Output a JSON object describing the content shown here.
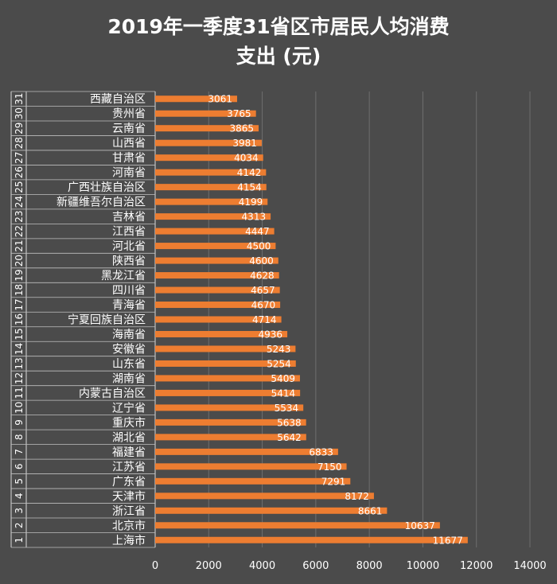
{
  "chart_data": {
    "type": "bar",
    "orientation": "horizontal",
    "title_line1": "2019年一季度31省区市居民人均消费",
    "title_line2": "支出 (元)",
    "colors": {
      "bar": "#ed7d31",
      "background": "#4b4b4b",
      "grid": "#6e6e6e",
      "text": "#ffffff"
    },
    "grid": true,
    "xlim": [
      0,
      14000
    ],
    "xticks": [
      "0",
      "2000",
      "4000",
      "6000",
      "8000",
      "10000",
      "12000",
      "14000"
    ],
    "rows": [
      {
        "rank": "31",
        "name": "西藏自治区",
        "value": 3061
      },
      {
        "rank": "30",
        "name": "贵州省",
        "value": 3765
      },
      {
        "rank": "29",
        "name": "云南省",
        "value": 3865
      },
      {
        "rank": "28",
        "name": "山西省",
        "value": 3981
      },
      {
        "rank": "27",
        "name": "甘肃省",
        "value": 4034
      },
      {
        "rank": "26",
        "name": "河南省",
        "value": 4142
      },
      {
        "rank": "25",
        "name": "广西壮族自治区",
        "value": 4154
      },
      {
        "rank": "24",
        "name": "新疆维吾尔自治区",
        "value": 4199
      },
      {
        "rank": "23",
        "name": "吉林省",
        "value": 4313
      },
      {
        "rank": "22",
        "name": "江西省",
        "value": 4447
      },
      {
        "rank": "21",
        "name": "河北省",
        "value": 4500
      },
      {
        "rank": "20",
        "name": "陕西省",
        "value": 4600
      },
      {
        "rank": "19",
        "name": "黑龙江省",
        "value": 4628
      },
      {
        "rank": "18",
        "name": "四川省",
        "value": 4657
      },
      {
        "rank": "17",
        "name": "青海省",
        "value": 4670
      },
      {
        "rank": "16",
        "name": "宁夏回族自治区",
        "value": 4714
      },
      {
        "rank": "15",
        "name": "海南省",
        "value": 4936
      },
      {
        "rank": "14",
        "name": "安徽省",
        "value": 5243
      },
      {
        "rank": "13",
        "name": "山东省",
        "value": 5254
      },
      {
        "rank": "12",
        "name": "湖南省",
        "value": 5409
      },
      {
        "rank": "11",
        "name": "内蒙古自治区",
        "value": 5414
      },
      {
        "rank": "10",
        "name": "辽宁省",
        "value": 5534
      },
      {
        "rank": "9",
        "name": "重庆市",
        "value": 5638
      },
      {
        "rank": "8",
        "name": "湖北省",
        "value": 5642
      },
      {
        "rank": "7",
        "name": "福建省",
        "value": 6833
      },
      {
        "rank": "6",
        "name": "江苏省",
        "value": 7150
      },
      {
        "rank": "5",
        "name": "广东省",
        "value": 7291
      },
      {
        "rank": "4",
        "name": "天津市",
        "value": 8172
      },
      {
        "rank": "3",
        "name": "浙江省",
        "value": 8661
      },
      {
        "rank": "2",
        "name": "北京市",
        "value": 10637
      },
      {
        "rank": "1",
        "name": "上海市",
        "value": 11677
      }
    ]
  }
}
